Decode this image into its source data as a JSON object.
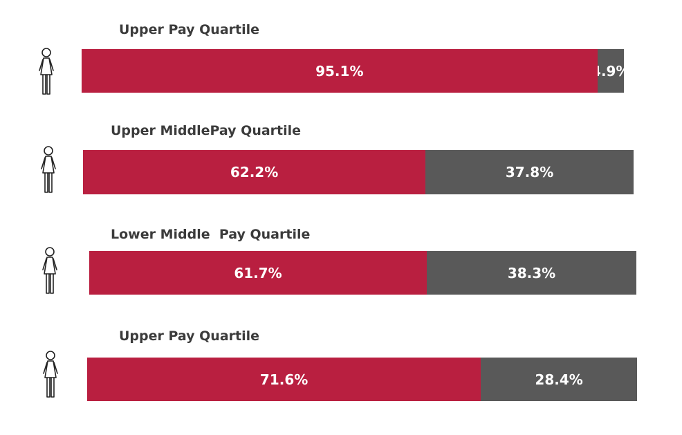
{
  "chart_data": {
    "type": "bar",
    "orientation": "horizontal-stacked",
    "categories": [
      "Upper Pay Quartile",
      "Upper MiddlePay Quartile",
      "Lower Middle  Pay Quartile",
      "Upper Pay Quartile"
    ],
    "series": [
      {
        "values": [
          95.1,
          62.2,
          61.7,
          71.6
        ],
        "labels": [
          "95.1%",
          "62.2%",
          "61.7%",
          "71.6%"
        ]
      },
      {
        "values": [
          4.9,
          37.8,
          38.3,
          28.4
        ],
        "labels": [
          "4.9%",
          "37.8%",
          "38.3%",
          "28.4%"
        ]
      }
    ],
    "xlim": [
      0,
      100
    ],
    "grid": false,
    "legend": "none"
  },
  "colors": {
    "series_1": "#b91f40",
    "series_2": "#595959"
  },
  "row_icon": "woman-icon"
}
